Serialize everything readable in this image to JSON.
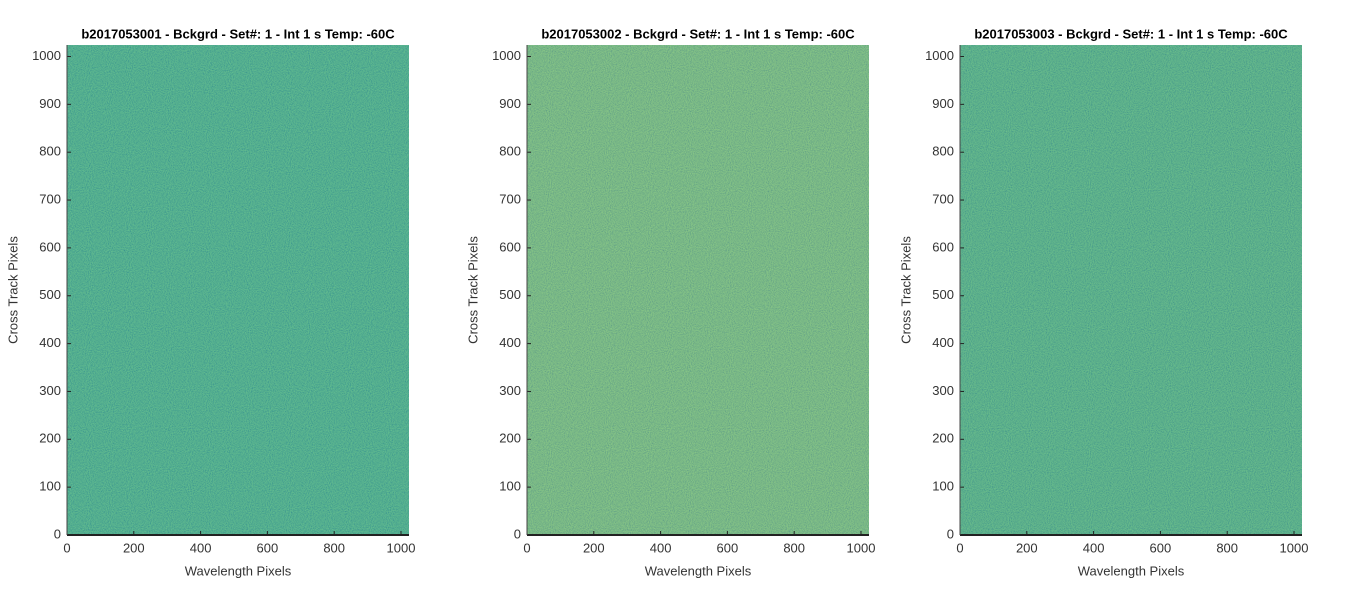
{
  "chart_data": [
    {
      "type": "image",
      "title": "b2017053001 - Bckgrd - Set#: 1 - Int 1 s Temp: -60C",
      "xlabel": "Wavelength Pixels",
      "ylabel": "Cross Track Pixels",
      "xlim": [
        0,
        1024
      ],
      "ylim": [
        0,
        1024
      ],
      "xticks": [
        0,
        200,
        400,
        600,
        800,
        1000
      ],
      "yticks": [
        0,
        100,
        200,
        300,
        400,
        500,
        600,
        700,
        800,
        900,
        1000
      ],
      "color": "#27a9a8"
    },
    {
      "type": "image",
      "title": "b2017053002 - Bckgrd - Set#: 1 - Int 1 s Temp: -60C",
      "xlabel": "Wavelength Pixels",
      "ylabel": "Cross Track Pixels",
      "xlim": [
        0,
        1024
      ],
      "ylim": [
        0,
        1024
      ],
      "xticks": [
        0,
        200,
        400,
        600,
        800,
        1000
      ],
      "yticks": [
        0,
        100,
        200,
        300,
        400,
        500,
        600,
        700,
        800,
        900,
        1000
      ],
      "color": "#5db79b"
    },
    {
      "type": "image",
      "title": "b2017053003 - Bckgrd - Set#: 1 - Int 1 s Temp: -60C",
      "xlabel": "Wavelength Pixels",
      "ylabel": "Cross Track Pixels",
      "xlim": [
        0,
        1024
      ],
      "ylim": [
        0,
        1024
      ],
      "xticks": [
        0,
        200,
        400,
        600,
        800,
        1000
      ],
      "yticks": [
        0,
        100,
        200,
        300,
        400,
        500,
        600,
        700,
        800,
        900,
        1000
      ],
      "color": "#33aba2"
    }
  ]
}
